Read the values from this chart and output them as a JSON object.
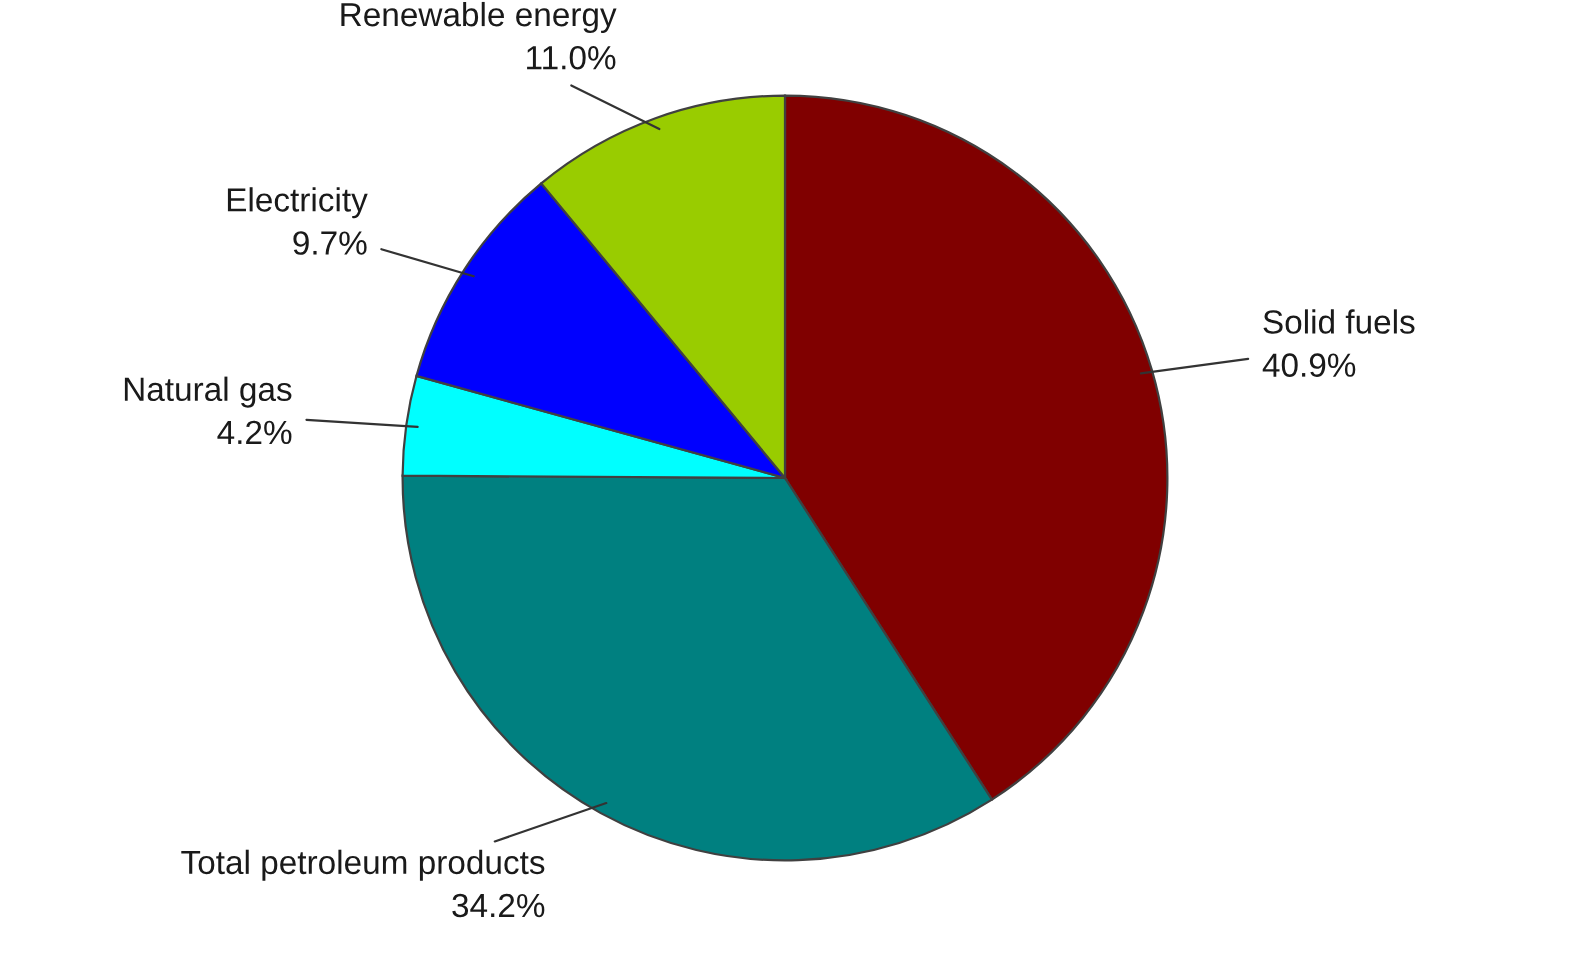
{
  "chart_data": {
    "type": "pie",
    "categories": [
      "Solid fuels",
      "Total petroleum products",
      "Natural gas",
      "Electricity",
      "Renewable energy"
    ],
    "values": [
      40.9,
      34.2,
      4.2,
      9.7,
      11.0
    ],
    "value_labels": [
      "40.9%",
      "34.2%",
      "4.2%",
      "9.7%",
      "11.0%"
    ],
    "colors": [
      "#800000",
      "#008080",
      "#00ffff",
      "#0000ff",
      "#99cc00"
    ],
    "legend": false
  }
}
